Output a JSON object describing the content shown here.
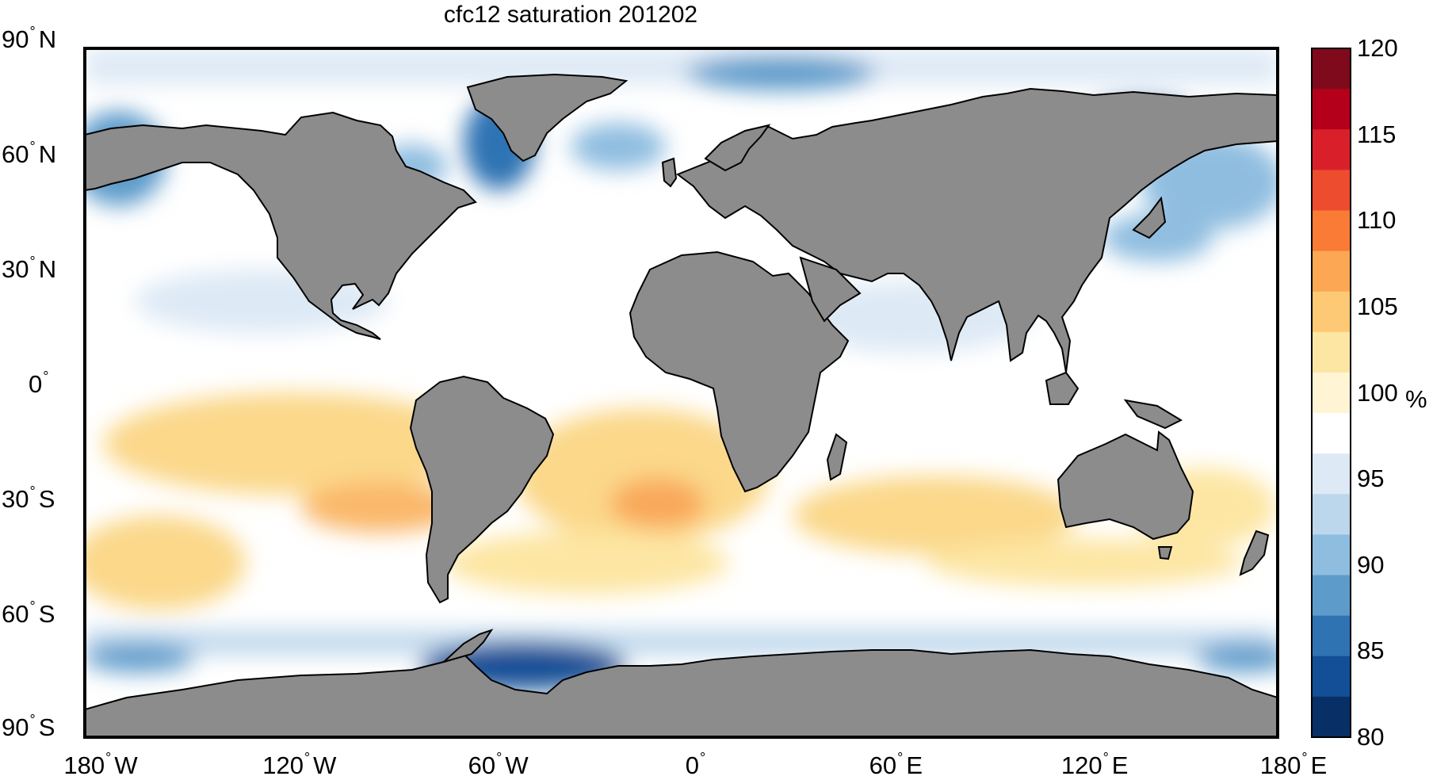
{
  "title": "cfc12 saturation 201202",
  "lat_ticks": [
    {
      "value": "90",
      "hemi": "N"
    },
    {
      "value": "60",
      "hemi": "N"
    },
    {
      "value": "30",
      "hemi": "N"
    },
    {
      "value": "0",
      "hemi": ""
    },
    {
      "value": "30",
      "hemi": "S"
    },
    {
      "value": "60",
      "hemi": "S"
    },
    {
      "value": "90",
      "hemi": "S"
    }
  ],
  "lon_ticks": [
    {
      "value": "180",
      "hemi": "W"
    },
    {
      "value": "120",
      "hemi": "W"
    },
    {
      "value": "60",
      "hemi": "W"
    },
    {
      "value": "0",
      "hemi": ""
    },
    {
      "value": "60",
      "hemi": "E"
    },
    {
      "value": "120",
      "hemi": "E"
    },
    {
      "value": "180",
      "hemi": "E"
    }
  ],
  "colorbar": {
    "ticks": [
      "120",
      "115",
      "110",
      "105",
      "100",
      "95",
      "90",
      "85",
      "80"
    ],
    "unit": "%",
    "min": 80,
    "max": 120,
    "colors_high_to_low": [
      "#7f0a1c",
      "#b5001b",
      "#d9202a",
      "#ee4c2e",
      "#f97b36",
      "#fca753",
      "#fdc974",
      "#fde6a3",
      "#fff5d4",
      "#ffffff",
      "#dde9f5",
      "#bcd6eb",
      "#8fbde0",
      "#5d9bcb",
      "#2f73b3",
      "#134f96",
      "#082f66"
    ]
  },
  "colors": {
    "land": "#8c8c8c",
    "ocean_baseline": "#ffffff",
    "supersaturated": "#fbd88a",
    "undersaturated": "#2f73b3"
  }
}
